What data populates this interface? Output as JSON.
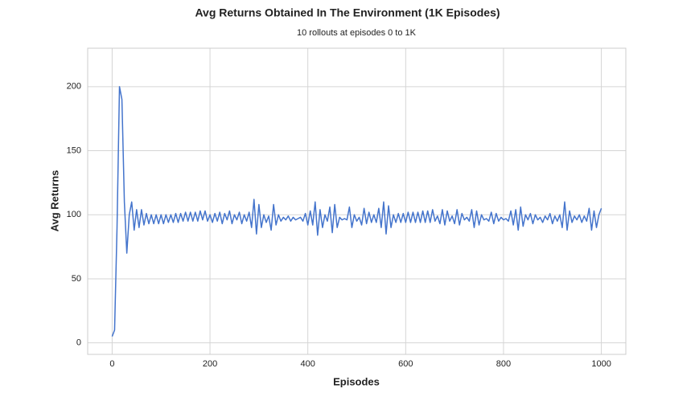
{
  "chart_data": {
    "type": "line",
    "title": "Avg Returns Obtained In The Environment (1K Episodes)",
    "subtitle": "10 rollouts at episodes 0 to 1K",
    "x_label": "Episodes",
    "y_label": "Avg Returns",
    "color": "#4474cc",
    "grid": true,
    "xlim": [
      -50,
      1050
    ],
    "ylim": [
      -9,
      230
    ],
    "xticks": [
      0,
      200,
      400,
      600,
      800,
      1000
    ],
    "yticks": [
      0,
      50,
      100,
      150,
      200
    ],
    "x": [
      0,
      5,
      10,
      15,
      20,
      25,
      30,
      35,
      40,
      45,
      50,
      55,
      60,
      65,
      70,
      75,
      80,
      85,
      90,
      95,
      100,
      105,
      110,
      115,
      120,
      125,
      130,
      135,
      140,
      145,
      150,
      155,
      160,
      165,
      170,
      175,
      180,
      185,
      190,
      195,
      200,
      205,
      210,
      215,
      220,
      225,
      230,
      235,
      240,
      245,
      250,
      255,
      260,
      265,
      270,
      275,
      280,
      285,
      290,
      295,
      300,
      305,
      310,
      315,
      320,
      325,
      330,
      335,
      340,
      345,
      350,
      355,
      360,
      365,
      370,
      375,
      380,
      385,
      390,
      395,
      400,
      405,
      410,
      415,
      420,
      425,
      430,
      435,
      440,
      445,
      450,
      455,
      460,
      465,
      470,
      475,
      480,
      485,
      490,
      495,
      500,
      505,
      510,
      515,
      520,
      525,
      530,
      535,
      540,
      545,
      550,
      555,
      560,
      565,
      570,
      575,
      580,
      585,
      590,
      595,
      600,
      605,
      610,
      615,
      620,
      625,
      630,
      635,
      640,
      645,
      650,
      655,
      660,
      665,
      670,
      675,
      680,
      685,
      690,
      695,
      700,
      705,
      710,
      715,
      720,
      725,
      730,
      735,
      740,
      745,
      750,
      755,
      760,
      765,
      770,
      775,
      780,
      785,
      790,
      795,
      800,
      805,
      810,
      815,
      820,
      825,
      830,
      835,
      840,
      845,
      850,
      855,
      860,
      865,
      870,
      875,
      880,
      885,
      890,
      895,
      900,
      905,
      910,
      915,
      920,
      925,
      930,
      935,
      940,
      945,
      950,
      955,
      960,
      965,
      970,
      975,
      980,
      985,
      990,
      995,
      1000
    ],
    "values": [
      5,
      10,
      90,
      200,
      190,
      110,
      70,
      100,
      110,
      88,
      104,
      90,
      104,
      92,
      101,
      93,
      100,
      93,
      100,
      93,
      100,
      93,
      100,
      94,
      100,
      94,
      101,
      94,
      101,
      95,
      102,
      95,
      102,
      95,
      102,
      95,
      103,
      96,
      103,
      95,
      100,
      94,
      101,
      95,
      102,
      93,
      101,
      96,
      103,
      93,
      100,
      96,
      102,
      93,
      100,
      95,
      102,
      90,
      112,
      85,
      108,
      90,
      100,
      94,
      99,
      88,
      108,
      92,
      100,
      95,
      98,
      96,
      99,
      95,
      98,
      96,
      97,
      98,
      95,
      101,
      92,
      103,
      92,
      110,
      84,
      104,
      90,
      100,
      95,
      106,
      86,
      108,
      90,
      98,
      96,
      97,
      96,
      106,
      90,
      100,
      95,
      98,
      92,
      105,
      93,
      102,
      94,
      100,
      94,
      105,
      90,
      110,
      85,
      107,
      90,
      100,
      94,
      101,
      94,
      101,
      94,
      102,
      94,
      102,
      94,
      102,
      94,
      103,
      94,
      103,
      94,
      104,
      95,
      99,
      93,
      104,
      92,
      103,
      95,
      99,
      93,
      104,
      92,
      101,
      96,
      98,
      95,
      104,
      90,
      103,
      92,
      100,
      96,
      97,
      95,
      102,
      93,
      101,
      95,
      98,
      96,
      97,
      95,
      103,
      92,
      104,
      88,
      106,
      91,
      100,
      96,
      101,
      93,
      100,
      96,
      98,
      94,
      99,
      96,
      101,
      93,
      99,
      95,
      100,
      90,
      110,
      88,
      103,
      94,
      99,
      96,
      100,
      94,
      99,
      95,
      105,
      88,
      103,
      90,
      100,
      105
    ]
  }
}
